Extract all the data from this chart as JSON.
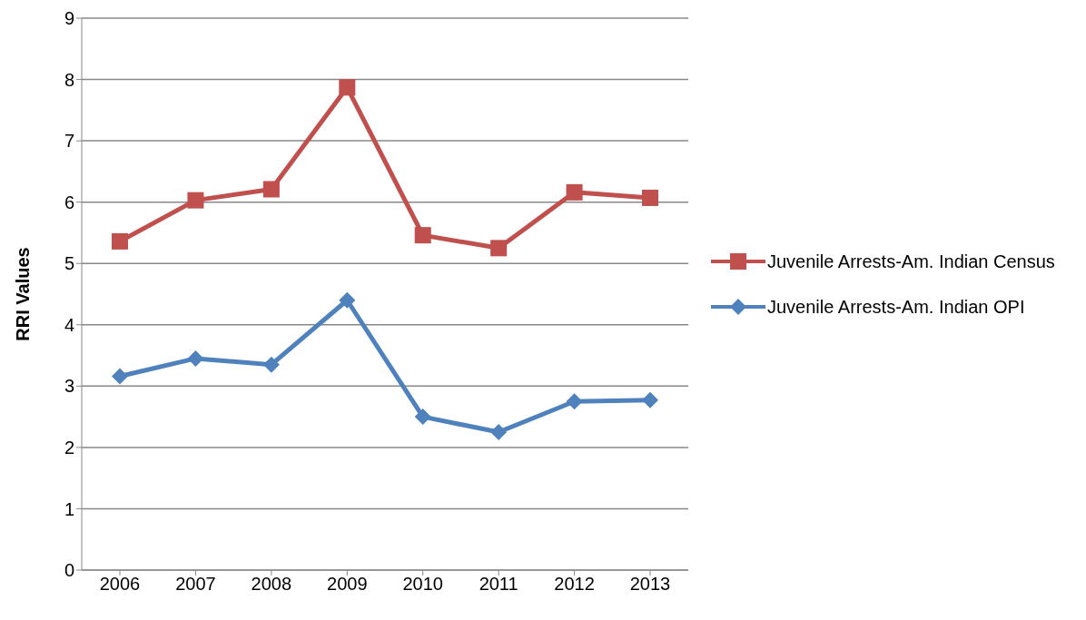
{
  "chart_data": {
    "type": "line",
    "ylabel": "RRI Values",
    "categories": [
      "2006",
      "2007",
      "2008",
      "2009",
      "2010",
      "2011",
      "2012",
      "2013"
    ],
    "series": [
      {
        "name": "Juvenile Arrests-Am. Indian Census",
        "color": "#c0504d",
        "marker": "square",
        "values": [
          5.36,
          6.03,
          6.21,
          7.87,
          5.46,
          5.25,
          6.16,
          6.07
        ]
      },
      {
        "name": "Juvenile Arrests-Am. Indian OPI",
        "color": "#4f81bd",
        "marker": "diamond",
        "values": [
          3.16,
          3.45,
          3.35,
          4.4,
          2.5,
          2.25,
          2.75,
          2.77
        ]
      }
    ],
    "ylim": [
      0,
      9
    ],
    "yticks": [
      0,
      1,
      2,
      3,
      4,
      5,
      6,
      7,
      8,
      9
    ],
    "grid": "y",
    "legend": "right",
    "line_style": "solid"
  }
}
